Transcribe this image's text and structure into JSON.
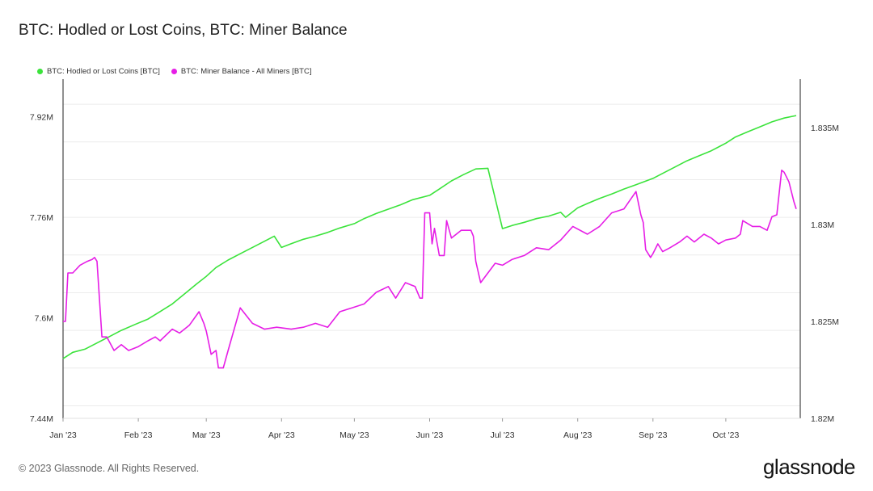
{
  "header": {
    "title": "BTC: Hodled or Lost Coins, BTC: Miner Balance"
  },
  "footer": {
    "copyright": "© 2023 Glassnode. All Rights Reserved.",
    "brand": "glassnode"
  },
  "chart_data": {
    "type": "line",
    "x_ticks": [
      "Jan '23",
      "Feb '23",
      "Mar '23",
      "Apr '23",
      "May '23",
      "Jun '23",
      "Jul '23",
      "Aug '23",
      "Sep '23",
      "Oct '23"
    ],
    "y_left": {
      "ticks": [
        "7.44M",
        "7.6M",
        "7.76M",
        "7.92M"
      ],
      "min": 7440000,
      "max": 7980000
    },
    "y_right": {
      "ticks": [
        "1.82M",
        "1.825M",
        "1.83M",
        "1.835M"
      ],
      "min": 1820000,
      "max": 1837500
    },
    "grid": true,
    "legend_position": "top-left",
    "series": [
      {
        "name": "BTC: Hodled or Lost Coins [BTC]",
        "color": "#3be33b",
        "axis": "left",
        "x": [
          "2023-01-01",
          "2023-01-05",
          "2023-01-10",
          "2023-01-15",
          "2023-01-20",
          "2023-01-25",
          "2023-01-31",
          "2023-02-05",
          "2023-02-10",
          "2023-02-15",
          "2023-02-20",
          "2023-02-25",
          "2023-03-01",
          "2023-03-05",
          "2023-03-10",
          "2023-03-15",
          "2023-03-20",
          "2023-03-25",
          "2023-03-29",
          "2023-04-01",
          "2023-04-05",
          "2023-04-10",
          "2023-04-15",
          "2023-04-20",
          "2023-04-25",
          "2023-05-01",
          "2023-05-05",
          "2023-05-10",
          "2023-05-15",
          "2023-05-20",
          "2023-05-25",
          "2023-06-01",
          "2023-06-05",
          "2023-06-10",
          "2023-06-15",
          "2023-06-20",
          "2023-06-25",
          "2023-07-01",
          "2023-07-05",
          "2023-07-10",
          "2023-07-15",
          "2023-07-20",
          "2023-07-25",
          "2023-07-27",
          "2023-08-01",
          "2023-08-05",
          "2023-08-10",
          "2023-08-15",
          "2023-08-20",
          "2023-08-25",
          "2023-09-01",
          "2023-09-05",
          "2023-09-10",
          "2023-09-15",
          "2023-09-20",
          "2023-09-25",
          "2023-10-01",
          "2023-10-05",
          "2023-10-10",
          "2023-10-15",
          "2023-10-20",
          "2023-10-25",
          "2023-10-30"
        ],
        "y": [
          7535000,
          7545000,
          7550000,
          7560000,
          7570000,
          7580000,
          7590000,
          7598000,
          7610000,
          7622000,
          7638000,
          7654000,
          7666000,
          7680000,
          7692000,
          7702000,
          7712000,
          7722000,
          7730000,
          7712000,
          7718000,
          7725000,
          7730000,
          7736000,
          7743000,
          7750000,
          7758000,
          7766000,
          7773000,
          7780000,
          7788000,
          7795000,
          7805000,
          7818000,
          7828000,
          7837000,
          7838000,
          7742000,
          7747000,
          7752000,
          7758000,
          7762000,
          7768000,
          7760000,
          7775000,
          7782000,
          7790000,
          7797000,
          7805000,
          7812000,
          7822000,
          7830000,
          7840000,
          7850000,
          7858000,
          7866000,
          7878000,
          7888000,
          7896000,
          7904000,
          7912000,
          7918000,
          7922000
        ]
      },
      {
        "name": "BTC: Miner Balance - All Miners [BTC]",
        "color": "#e61ee6",
        "axis": "right",
        "x": [
          "2023-01-01",
          "2023-01-02",
          "2023-01-03",
          "2023-01-05",
          "2023-01-08",
          "2023-01-11",
          "2023-01-13",
          "2023-01-14",
          "2023-01-15",
          "2023-01-17",
          "2023-01-19",
          "2023-01-22",
          "2023-01-25",
          "2023-01-28",
          "2023-02-01",
          "2023-02-05",
          "2023-02-08",
          "2023-02-10",
          "2023-02-15",
          "2023-02-18",
          "2023-02-22",
          "2023-02-26",
          "2023-02-28",
          "2023-03-01",
          "2023-03-03",
          "2023-03-05",
          "2023-03-06",
          "2023-03-08",
          "2023-03-10",
          "2023-03-15",
          "2023-03-20",
          "2023-03-25",
          "2023-03-30",
          "2023-04-05",
          "2023-04-10",
          "2023-04-15",
          "2023-04-20",
          "2023-04-25",
          "2023-04-30",
          "2023-05-05",
          "2023-05-10",
          "2023-05-15",
          "2023-05-18",
          "2023-05-22",
          "2023-05-26",
          "2023-05-28",
          "2023-05-29",
          "2023-05-30",
          "2023-06-01",
          "2023-06-02",
          "2023-06-03",
          "2023-06-05",
          "2023-06-07",
          "2023-06-08",
          "2023-06-10",
          "2023-06-14",
          "2023-06-18",
          "2023-06-19",
          "2023-06-20",
          "2023-06-22",
          "2023-06-25",
          "2023-06-28",
          "2023-07-01",
          "2023-07-05",
          "2023-07-10",
          "2023-07-15",
          "2023-07-20",
          "2023-07-25",
          "2023-07-30",
          "2023-08-05",
          "2023-08-10",
          "2023-08-15",
          "2023-08-20",
          "2023-08-25",
          "2023-08-27",
          "2023-08-28",
          "2023-08-29",
          "2023-08-31",
          "2023-09-01",
          "2023-09-03",
          "2023-09-05",
          "2023-09-08",
          "2023-09-12",
          "2023-09-15",
          "2023-09-18",
          "2023-09-22",
          "2023-09-25",
          "2023-09-28",
          "2023-10-01",
          "2023-10-05",
          "2023-10-07",
          "2023-10-08",
          "2023-10-12",
          "2023-10-15",
          "2023-10-18",
          "2023-10-20",
          "2023-10-22",
          "2023-10-24",
          "2023-10-25",
          "2023-10-27",
          "2023-10-29",
          "2023-10-30"
        ],
        "y": [
          1825000,
          1825000,
          1827500,
          1827500,
          1827900,
          1828100,
          1828200,
          1828300,
          1828100,
          1824200,
          1824200,
          1823500,
          1823800,
          1823500,
          1823700,
          1824000,
          1824200,
          1824000,
          1824600,
          1824400,
          1824800,
          1825500,
          1824900,
          1824500,
          1823300,
          1823500,
          1822600,
          1822600,
          1823500,
          1825700,
          1824900,
          1824600,
          1824700,
          1824600,
          1824700,
          1824900,
          1824700,
          1825500,
          1825700,
          1825900,
          1826500,
          1826800,
          1826200,
          1827000,
          1826800,
          1826200,
          1826200,
          1830600,
          1830600,
          1829000,
          1829800,
          1828400,
          1828400,
          1830200,
          1829300,
          1829700,
          1829700,
          1829400,
          1828100,
          1827000,
          1827500,
          1828000,
          1827900,
          1828200,
          1828400,
          1828800,
          1828700,
          1829200,
          1829900,
          1829500,
          1829900,
          1830600,
          1830800,
          1831700,
          1830500,
          1830100,
          1828700,
          1828300,
          1828500,
          1829000,
          1828600,
          1828800,
          1829100,
          1829400,
          1829100,
          1829500,
          1829300,
          1829000,
          1829200,
          1829300,
          1829500,
          1830200,
          1829900,
          1829900,
          1829700,
          1830400,
          1830500,
          1832800,
          1832700,
          1832200,
          1831200,
          1830800
        ]
      }
    ]
  }
}
